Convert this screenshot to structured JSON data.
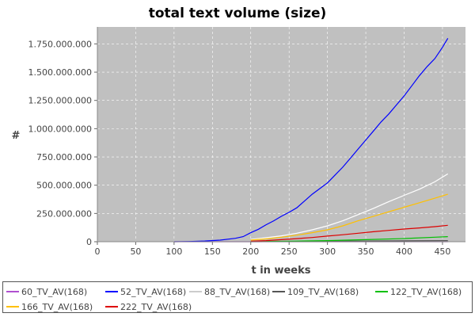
{
  "chart_data": {
    "type": "line",
    "title": "total text volume (size)",
    "xlabel": "t in weeks",
    "ylabel": "#",
    "xlim": [
      0,
      480
    ],
    "ylim": [
      0,
      1900000000
    ],
    "x_ticks": [
      0,
      50,
      100,
      150,
      200,
      250,
      300,
      350,
      400,
      450
    ],
    "y_ticks": [
      0,
      250000000,
      500000000,
      750000000,
      1000000000,
      1250000000,
      1500000000,
      1750000000
    ],
    "y_tick_labels": [
      "0",
      "250.000.000",
      "500.000.000",
      "750.000.000",
      "1.000.000.000",
      "1.250.000.000",
      "1.500.000.000",
      "1.750.000.000"
    ],
    "x_tick_labels": [
      "0",
      "50",
      "100",
      "150",
      "200",
      "250",
      "300",
      "350",
      "400",
      "450"
    ],
    "grid": true,
    "legend_position": "bottom",
    "series": [
      {
        "name": "60_TV_AV(168)",
        "color": "#b050d0",
        "x": [
          100,
          150,
          200,
          250,
          300,
          350,
          400,
          457
        ],
        "y": [
          0,
          0,
          0,
          0,
          0,
          0,
          0,
          0
        ]
      },
      {
        "name": "52_TV_AV(168)",
        "color": "#0000ff",
        "x": [
          100,
          120,
          140,
          160,
          180,
          190,
          200,
          210,
          220,
          230,
          240,
          250,
          260,
          270,
          280,
          290,
          300,
          310,
          320,
          330,
          340,
          350,
          360,
          370,
          380,
          390,
          400,
          410,
          420,
          430,
          440,
          450,
          457
        ],
        "y": [
          0,
          2000000,
          6000000,
          14000000,
          30000000,
          45000000,
          80000000,
          110000000,
          150000000,
          185000000,
          225000000,
          260000000,
          300000000,
          360000000,
          420000000,
          470000000,
          520000000,
          590000000,
          660000000,
          740000000,
          820000000,
          900000000,
          980000000,
          1060000000,
          1130000000,
          1210000000,
          1290000000,
          1380000000,
          1470000000,
          1550000000,
          1620000000,
          1720000000,
          1800000000
        ]
      },
      {
        "name": "88_TV_AV(168)",
        "color": "#ffffff",
        "x": [
          200,
          220,
          240,
          260,
          280,
          300,
          320,
          340,
          360,
          380,
          400,
          420,
          440,
          457
        ],
        "y": [
          20000000,
          35000000,
          52000000,
          75000000,
          105000000,
          140000000,
          185000000,
          240000000,
          295000000,
          355000000,
          410000000,
          465000000,
          530000000,
          600000000
        ]
      },
      {
        "name": "109_TV_AV(168)",
        "color": "#555555",
        "x": [
          200,
          250,
          300,
          350,
          400,
          457
        ],
        "y": [
          0,
          2000000,
          4000000,
          6000000,
          8000000,
          10000000
        ]
      },
      {
        "name": "122_TV_AV(168)",
        "color": "#00c000",
        "x": [
          200,
          250,
          300,
          350,
          400,
          440,
          457
        ],
        "y": [
          2000000,
          5000000,
          10000000,
          18000000,
          28000000,
          40000000,
          45000000
        ]
      },
      {
        "name": "166_TV_AV(168)",
        "color": "#ffc000",
        "x": [
          200,
          220,
          240,
          260,
          280,
          300,
          320,
          340,
          360,
          380,
          400,
          420,
          440,
          457
        ],
        "y": [
          15000000,
          25000000,
          40000000,
          58000000,
          80000000,
          105000000,
          140000000,
          185000000,
          225000000,
          265000000,
          305000000,
          345000000,
          385000000,
          420000000
        ]
      },
      {
        "name": "222_TV_AV(168)",
        "color": "#dd0000",
        "x": [
          200,
          220,
          240,
          260,
          280,
          300,
          320,
          340,
          360,
          380,
          400,
          420,
          440,
          457
        ],
        "y": [
          5000000,
          10000000,
          18000000,
          27000000,
          37000000,
          50000000,
          62000000,
          75000000,
          88000000,
          100000000,
          112000000,
          122000000,
          133000000,
          145000000
        ]
      }
    ]
  }
}
